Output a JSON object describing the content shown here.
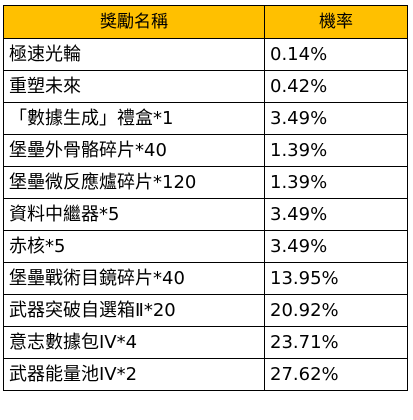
{
  "table": {
    "headers": {
      "reward_name": "獎勵名稱",
      "probability": "機率"
    },
    "rows": [
      {
        "name": "極速光輪",
        "rate": "0.14%"
      },
      {
        "name": "重塑未來",
        "rate": "0.42%"
      },
      {
        "name": "「數據生成」禮盒*1",
        "rate": "3.49%"
      },
      {
        "name": "堡壘外骨骼碎片*40",
        "rate": "1.39%"
      },
      {
        "name": "堡壘微反應爐碎片*120",
        "rate": "1.39%"
      },
      {
        "name": "資料中繼器*5",
        "rate": "3.49%"
      },
      {
        "name": "赤核*5",
        "rate": "3.49%"
      },
      {
        "name": "堡壘戰術目鏡碎片*40",
        "rate": "13.95%"
      },
      {
        "name": "武器突破自選箱Ⅱ*20",
        "rate": "20.92%"
      },
      {
        "name": "意志數據包IV*4",
        "rate": "23.71%"
      },
      {
        "name": "武器能量池IV*2",
        "rate": "27.62%"
      }
    ],
    "colors": {
      "header_background": "#ffc000",
      "border": "#000000",
      "text": "#000000"
    }
  }
}
